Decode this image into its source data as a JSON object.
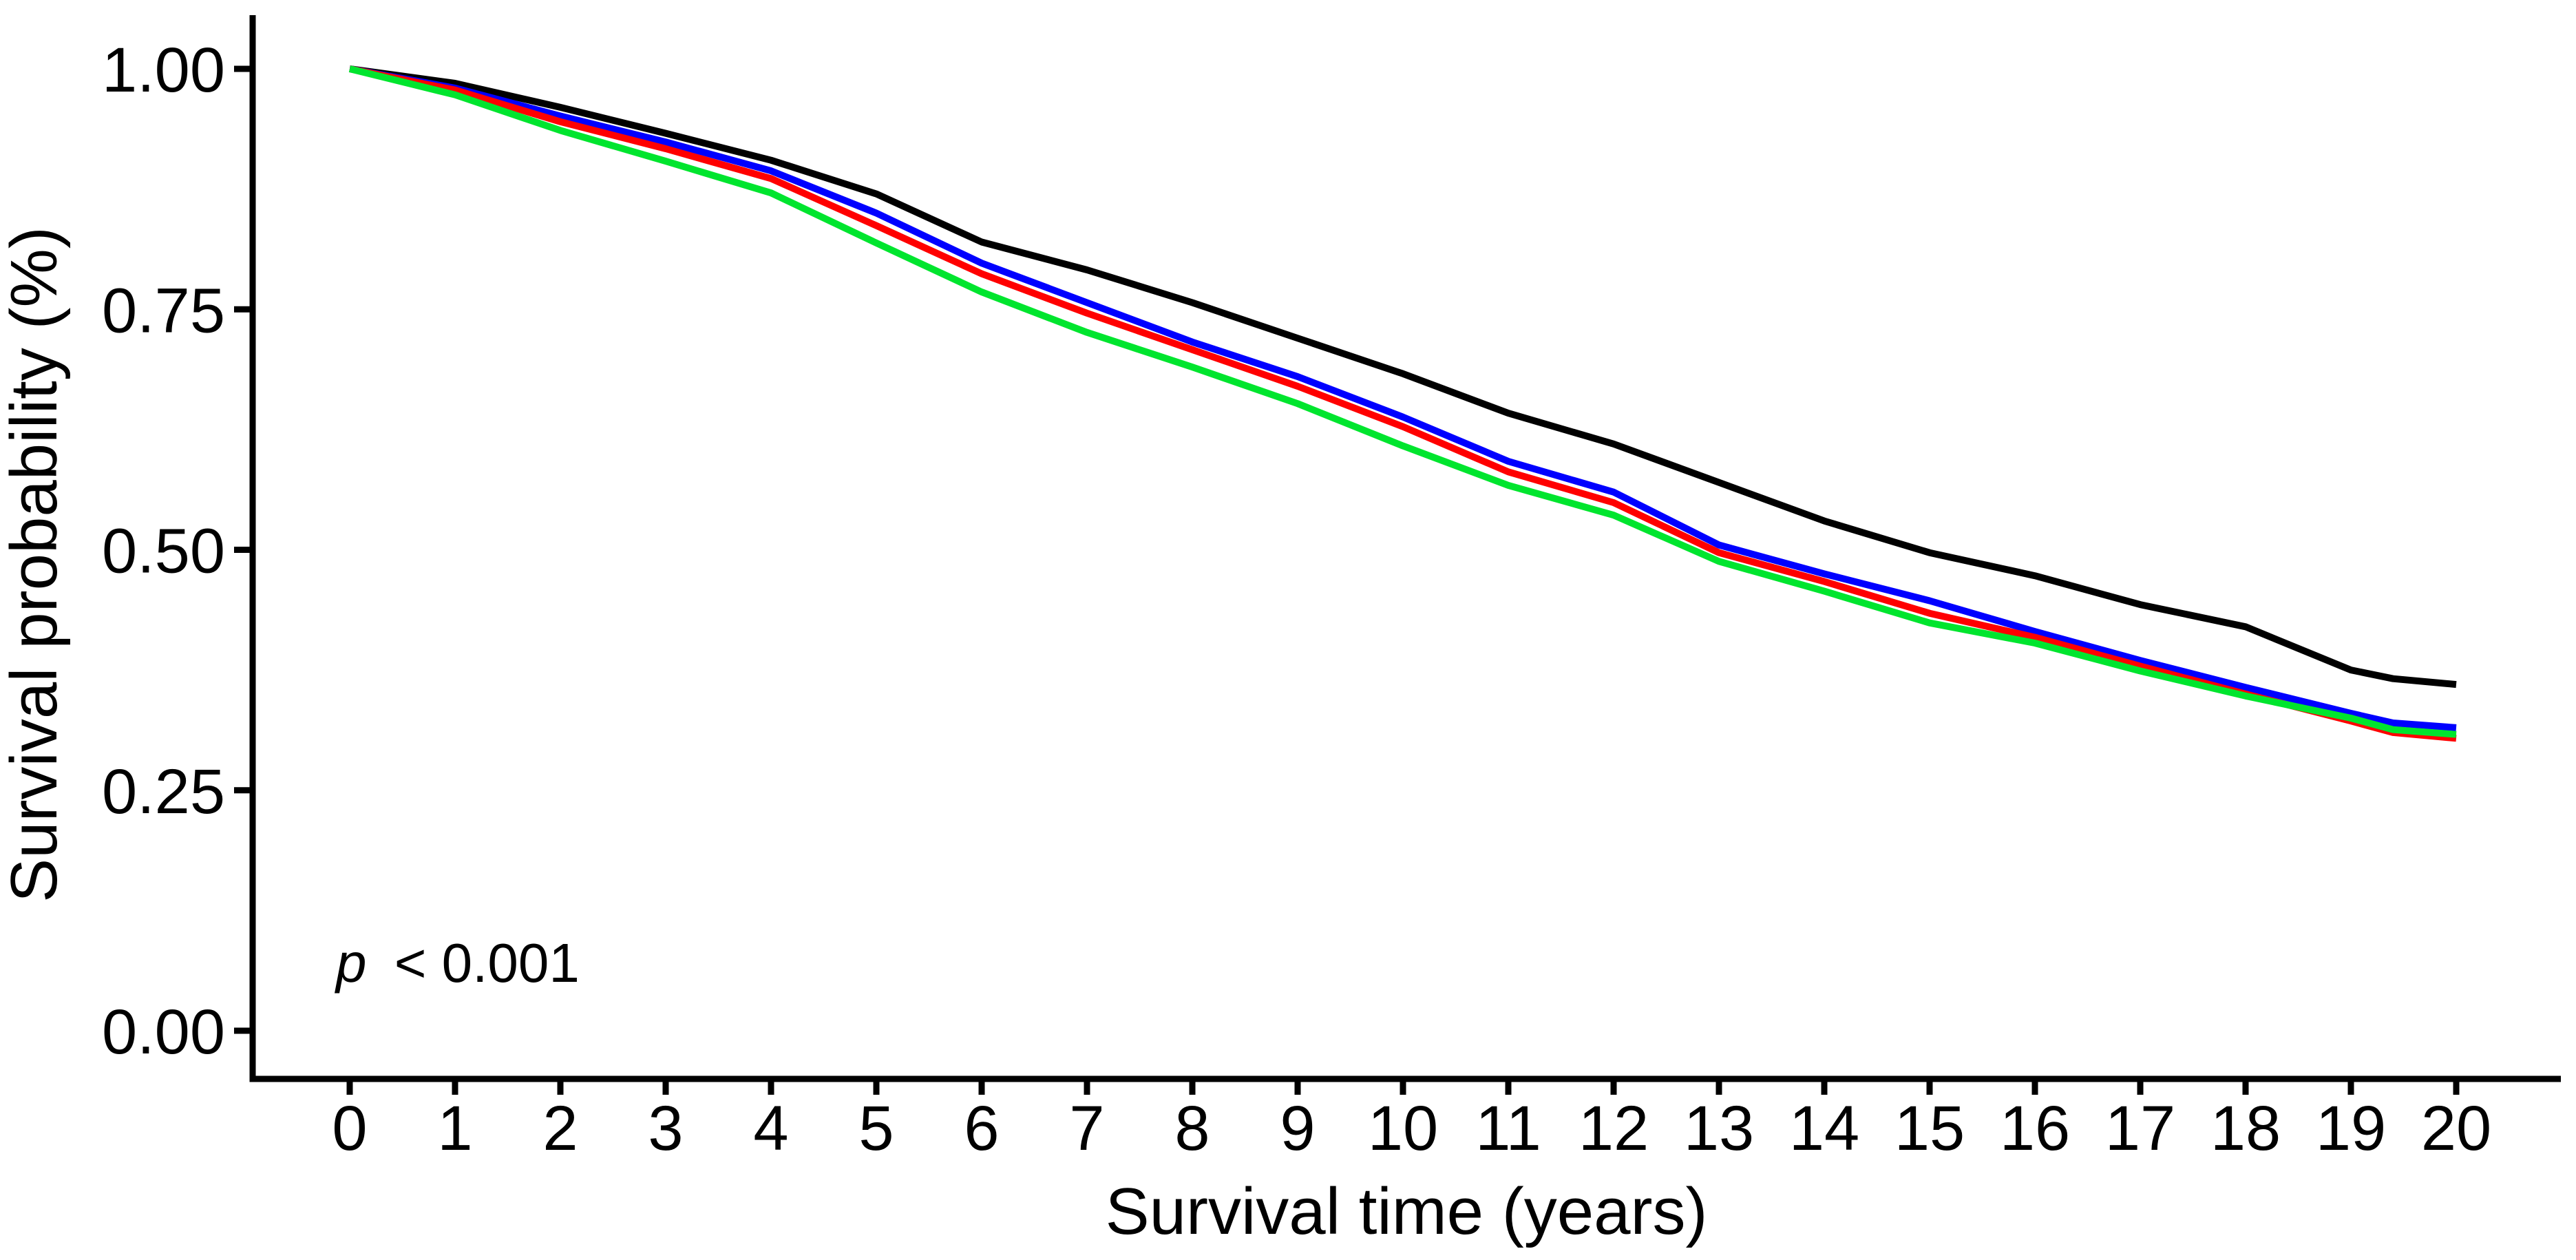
{
  "page": {
    "background": "#ffffff",
    "text_color": "#000000"
  },
  "chart_data": {
    "type": "line",
    "subtype": "kaplan-meier-survival-curves",
    "title": "",
    "xlabel": "Survival time (years)",
    "ylabel": "Survival probability (%)",
    "annotation_p": "p",
    "annotation_rest": "< 0.001",
    "grid": false,
    "legend": "none",
    "xlim": [
      0,
      20
    ],
    "ylim": [
      0.0,
      1.0
    ],
    "x_ticks": [
      0,
      1,
      2,
      3,
      4,
      5,
      6,
      7,
      8,
      9,
      10,
      11,
      12,
      13,
      14,
      15,
      16,
      17,
      18,
      19,
      20
    ],
    "y_ticks": [
      {
        "value": 1.0,
        "label": "1.00"
      },
      {
        "value": 0.75,
        "label": "0.75"
      },
      {
        "value": 0.5,
        "label": "0.50"
      },
      {
        "value": 0.25,
        "label": "0.25"
      },
      {
        "value": 0.0,
        "label": "0.00"
      }
    ],
    "x": [
      0,
      1,
      2,
      3,
      4,
      5,
      6,
      7,
      8,
      9,
      10,
      11,
      12,
      13,
      14,
      15,
      16,
      17,
      18,
      19,
      19.4,
      20
    ],
    "series": [
      {
        "name": "curve-black",
        "color": "#000000",
        "values": [
          1.0,
          0.985,
          0.96,
          0.933,
          0.905,
          0.87,
          0.82,
          0.791,
          0.757,
          0.72,
          0.683,
          0.642,
          0.61,
          0.57,
          0.53,
          0.497,
          0.473,
          0.443,
          0.42,
          0.375,
          0.366,
          0.36
        ]
      },
      {
        "name": "curve-blue",
        "color": "#0000ff",
        "values": [
          1.0,
          0.98,
          0.951,
          0.924,
          0.894,
          0.85,
          0.798,
          0.757,
          0.716,
          0.68,
          0.638,
          0.592,
          0.56,
          0.505,
          0.475,
          0.447,
          0.415,
          0.385,
          0.357,
          0.33,
          0.32,
          0.315
        ]
      },
      {
        "name": "curve-red",
        "color": "#ff0000",
        "values": [
          1.0,
          0.978,
          0.945,
          0.917,
          0.886,
          0.837,
          0.787,
          0.746,
          0.708,
          0.67,
          0.628,
          0.581,
          0.549,
          0.497,
          0.467,
          0.434,
          0.409,
          0.379,
          0.35,
          0.322,
          0.31,
          0.304
        ]
      },
      {
        "name": "curve-green",
        "color": "#00e52e",
        "values": [
          1.0,
          0.973,
          0.936,
          0.904,
          0.871,
          0.819,
          0.768,
          0.726,
          0.69,
          0.652,
          0.608,
          0.567,
          0.536,
          0.488,
          0.457,
          0.424,
          0.403,
          0.374,
          0.348,
          0.325,
          0.313,
          0.308
        ]
      }
    ]
  }
}
